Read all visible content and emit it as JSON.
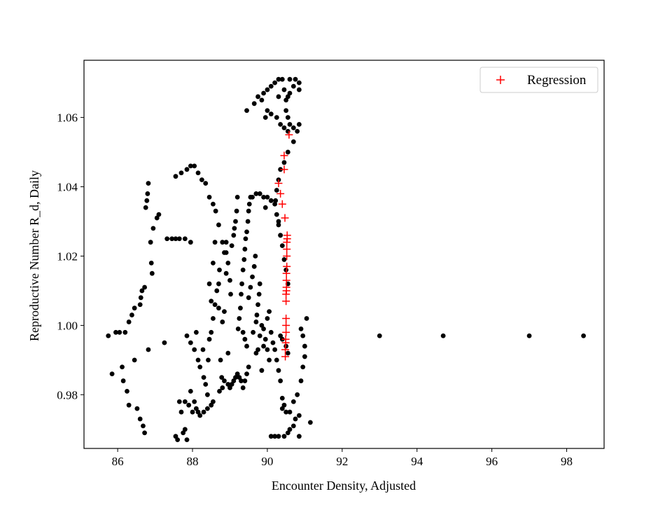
{
  "chart_data": {
    "type": "scatter",
    "title": "",
    "xlabel": "Encounter Density, Adjusted",
    "ylabel": "Reproductive Number R_d, Daily",
    "xlim": [
      85.1,
      99.0
    ],
    "ylim": [
      0.9645,
      1.0765
    ],
    "xticks": [
      86,
      88,
      90,
      92,
      94,
      96,
      98
    ],
    "yticks": [
      0.98,
      1.0,
      1.02,
      1.04,
      1.06
    ],
    "xtick_labels": [
      "86",
      "88",
      "90",
      "92",
      "94",
      "96",
      "98"
    ],
    "ytick_labels": [
      "0.98",
      "1.00",
      "1.02",
      "1.04",
      "1.06"
    ],
    "grid": false,
    "legend": {
      "position": "top-right",
      "entries": [
        {
          "label": "Regression",
          "marker": "+",
          "color": "#ff0000"
        }
      ]
    },
    "series": [
      {
        "marker": "dot",
        "color": "#000000",
        "points": [
          [
            85.75,
            0.997
          ],
          [
            85.85,
            0.986
          ],
          [
            85.95,
            0.998
          ],
          [
            86.05,
            0.998
          ],
          [
            86.12,
            0.988
          ],
          [
            86.15,
            0.984
          ],
          [
            86.2,
            0.998
          ],
          [
            86.25,
            0.981
          ],
          [
            86.3,
            1.001
          ],
          [
            86.3,
            0.977
          ],
          [
            86.38,
            1.003
          ],
          [
            86.45,
            1.005
          ],
          [
            86.45,
            0.99
          ],
          [
            86.52,
            0.976
          ],
          [
            86.6,
            1.006
          ],
          [
            86.6,
            0.973
          ],
          [
            86.62,
            1.008
          ],
          [
            86.65,
            1.01
          ],
          [
            86.68,
            0.971
          ],
          [
            86.72,
            1.011
          ],
          [
            86.72,
            0.969
          ],
          [
            86.75,
            1.034
          ],
          [
            86.78,
            1.036
          ],
          [
            86.8,
            1.038
          ],
          [
            86.82,
            1.041
          ],
          [
            86.82,
            0.993
          ],
          [
            86.88,
            1.024
          ],
          [
            86.9,
            1.018
          ],
          [
            86.92,
            1.015
          ],
          [
            86.95,
            1.028
          ],
          [
            87.05,
            1.031
          ],
          [
            87.1,
            1.032
          ],
          [
            87.25,
            0.995
          ],
          [
            87.32,
            1.025
          ],
          [
            87.45,
            1.025
          ],
          [
            87.55,
            1.025
          ],
          [
            87.65,
            1.025
          ],
          [
            87.8,
            1.025
          ],
          [
            87.95,
            1.024
          ],
          [
            87.55,
            0.968
          ],
          [
            87.6,
            0.967
          ],
          [
            87.65,
            0.978
          ],
          [
            87.7,
            0.975
          ],
          [
            87.75,
            0.969
          ],
          [
            87.8,
            0.97
          ],
          [
            87.8,
            0.978
          ],
          [
            87.85,
            0.967
          ],
          [
            87.9,
            0.977
          ],
          [
            87.95,
            0.981
          ],
          [
            88.0,
            0.975
          ],
          [
            88.05,
            0.978
          ],
          [
            88.1,
            0.976
          ],
          [
            88.15,
            0.975
          ],
          [
            88.2,
            0.974
          ],
          [
            88.3,
            0.975
          ],
          [
            88.4,
            0.976
          ],
          [
            88.5,
            0.977
          ],
          [
            88.55,
            0.978
          ],
          [
            87.55,
            1.043
          ],
          [
            87.7,
            1.044
          ],
          [
            87.85,
            1.045
          ],
          [
            87.95,
            1.046
          ],
          [
            88.05,
            1.046
          ],
          [
            88.15,
            1.044
          ],
          [
            88.25,
            1.042
          ],
          [
            88.35,
            1.041
          ],
          [
            88.45,
            1.037
          ],
          [
            88.55,
            1.035
          ],
          [
            88.62,
            1.033
          ],
          [
            88.7,
            1.029
          ],
          [
            88.8,
            1.024
          ],
          [
            88.9,
            1.021
          ],
          [
            87.85,
            0.997
          ],
          [
            87.95,
            0.995
          ],
          [
            88.05,
            0.993
          ],
          [
            88.1,
            0.998
          ],
          [
            88.15,
            0.99
          ],
          [
            88.2,
            0.988
          ],
          [
            88.28,
            0.993
          ],
          [
            88.3,
            0.985
          ],
          [
            88.35,
            0.983
          ],
          [
            88.4,
            0.98
          ],
          [
            88.42,
            0.99
          ],
          [
            88.45,
            0.996
          ],
          [
            88.5,
            0.998
          ],
          [
            88.55,
            1.002
          ],
          [
            88.6,
            1.006
          ],
          [
            88.65,
            1.01
          ],
          [
            88.7,
            1.012
          ],
          [
            88.72,
            1.016
          ],
          [
            88.72,
            0.981
          ],
          [
            88.75,
            0.99
          ],
          [
            88.78,
            0.985
          ],
          [
            88.8,
            0.982
          ],
          [
            88.85,
            1.021
          ],
          [
            88.85,
            0.984
          ],
          [
            88.9,
            1.024
          ],
          [
            88.95,
            0.983
          ],
          [
            88.95,
            0.992
          ],
          [
            89.0,
            0.982
          ],
          [
            89.05,
            0.983
          ],
          [
            89.1,
            0.984
          ],
          [
            89.15,
            0.985
          ],
          [
            89.2,
            0.986
          ],
          [
            89.25,
            0.985
          ],
          [
            89.3,
            0.984
          ],
          [
            89.35,
            0.982
          ],
          [
            89.4,
            0.984
          ],
          [
            89.45,
            0.986
          ],
          [
            89.5,
            0.988
          ],
          [
            88.45,
            1.012
          ],
          [
            88.5,
            1.007
          ],
          [
            88.55,
            1.018
          ],
          [
            88.6,
            1.024
          ],
          [
            88.7,
            1.005
          ],
          [
            88.8,
            1.001
          ],
          [
            88.85,
            1.004
          ],
          [
            88.9,
            1.015
          ],
          [
            88.95,
            1.018
          ],
          [
            89.0,
            1.013
          ],
          [
            89.02,
            1.009
          ],
          [
            89.05,
            1.023
          ],
          [
            89.1,
            1.026
          ],
          [
            89.12,
            1.028
          ],
          [
            89.15,
            1.03
          ],
          [
            89.18,
            1.033
          ],
          [
            89.2,
            1.037
          ],
          [
            89.22,
            0.999
          ],
          [
            89.25,
            1.002
          ],
          [
            89.28,
            1.005
          ],
          [
            89.3,
            1.009
          ],
          [
            89.32,
            1.012
          ],
          [
            89.35,
            1.016
          ],
          [
            89.38,
            1.019
          ],
          [
            89.4,
            1.022
          ],
          [
            89.42,
            1.025
          ],
          [
            89.45,
            1.027
          ],
          [
            89.48,
            1.03
          ],
          [
            89.5,
            1.033
          ],
          [
            89.52,
            1.035
          ],
          [
            89.55,
            1.037
          ],
          [
            89.35,
            0.998
          ],
          [
            89.4,
            0.996
          ],
          [
            89.45,
            0.994
          ],
          [
            89.5,
            1.008
          ],
          [
            89.55,
            1.011
          ],
          [
            89.6,
            1.014
          ],
          [
            89.62,
            0.998
          ],
          [
            89.65,
            1.017
          ],
          [
            89.68,
            1.02
          ],
          [
            89.7,
            1.001
          ],
          [
            89.72,
            1.003
          ],
          [
            89.75,
            1.006
          ],
          [
            89.78,
            1.009
          ],
          [
            89.8,
            1.012
          ],
          [
            89.8,
            0.997
          ],
          [
            89.85,
            1.0
          ],
          [
            89.85,
            0.987
          ],
          [
            89.9,
            0.999
          ],
          [
            89.9,
            0.994
          ],
          [
            89.95,
            0.996
          ],
          [
            90.0,
            1.002
          ],
          [
            90.0,
            0.993
          ],
          [
            90.05,
            1.004
          ],
          [
            90.05,
            0.99
          ],
          [
            90.1,
            0.998
          ],
          [
            90.15,
            0.995
          ],
          [
            90.2,
            0.993
          ],
          [
            90.25,
            0.99
          ],
          [
            89.7,
            0.992
          ],
          [
            89.75,
            0.993
          ],
          [
            89.6,
            1.037
          ],
          [
            89.7,
            1.038
          ],
          [
            89.8,
            1.038
          ],
          [
            89.9,
            1.037
          ],
          [
            90.0,
            1.037
          ],
          [
            90.1,
            1.036
          ],
          [
            90.2,
            1.035
          ],
          [
            90.25,
            1.032
          ],
          [
            90.3,
            1.029
          ],
          [
            90.35,
            1.026
          ],
          [
            90.4,
            1.023
          ],
          [
            90.45,
            1.019
          ],
          [
            90.5,
            1.016
          ],
          [
            90.55,
            1.012
          ],
          [
            89.95,
            1.034
          ],
          [
            89.45,
            1.062
          ],
          [
            89.65,
            1.064
          ],
          [
            89.75,
            1.066
          ],
          [
            89.85,
            1.065
          ],
          [
            89.9,
            1.067
          ],
          [
            90.0,
            1.068
          ],
          [
            90.1,
            1.069
          ],
          [
            90.2,
            1.07
          ],
          [
            90.3,
            1.071
          ],
          [
            90.4,
            1.071
          ],
          [
            90.6,
            1.071
          ],
          [
            90.75,
            1.071
          ],
          [
            90.85,
            1.07
          ],
          [
            90.85,
            1.068
          ],
          [
            90.7,
            1.069
          ],
          [
            90.6,
            1.067
          ],
          [
            90.55,
            1.066
          ],
          [
            90.5,
            1.065
          ],
          [
            90.5,
            1.062
          ],
          [
            90.55,
            1.06
          ],
          [
            90.6,
            1.058
          ],
          [
            90.7,
            1.057
          ],
          [
            90.8,
            1.056
          ],
          [
            90.85,
            1.058
          ],
          [
            90.7,
            1.053
          ],
          [
            90.55,
            1.056
          ],
          [
            90.45,
            1.057
          ],
          [
            90.35,
            1.058
          ],
          [
            90.25,
            1.06
          ],
          [
            90.1,
            1.061
          ],
          [
            90.0,
            1.062
          ],
          [
            89.95,
            1.06
          ],
          [
            90.3,
            1.066
          ],
          [
            90.45,
            1.068
          ],
          [
            90.55,
            1.05
          ],
          [
            90.45,
            1.047
          ],
          [
            90.35,
            1.045
          ],
          [
            90.3,
            1.042
          ],
          [
            90.25,
            1.039
          ],
          [
            90.22,
            1.036
          ],
          [
            90.3,
            1.03
          ],
          [
            90.35,
            1.026
          ],
          [
            90.4,
            0.976
          ],
          [
            90.5,
            0.975
          ],
          [
            90.6,
            0.975
          ],
          [
            90.7,
            0.978
          ],
          [
            90.8,
            0.98
          ],
          [
            90.9,
            0.984
          ],
          [
            90.95,
            0.988
          ],
          [
            91.0,
            0.991
          ],
          [
            91.0,
            0.994
          ],
          [
            90.95,
            0.997
          ],
          [
            90.9,
            0.999
          ],
          [
            91.05,
            1.002
          ],
          [
            90.3,
            0.987
          ],
          [
            90.35,
            0.984
          ],
          [
            90.4,
            0.979
          ],
          [
            90.45,
            0.977
          ],
          [
            90.35,
            0.997
          ],
          [
            90.4,
            0.996
          ],
          [
            90.5,
            0.994
          ],
          [
            90.55,
            0.992
          ],
          [
            90.1,
            0.968
          ],
          [
            90.2,
            0.968
          ],
          [
            90.3,
            0.968
          ],
          [
            90.45,
            0.968
          ],
          [
            90.55,
            0.969
          ],
          [
            90.6,
            0.97
          ],
          [
            90.7,
            0.971
          ],
          [
            90.75,
            0.973
          ],
          [
            90.85,
            0.968
          ],
          [
            90.85,
            0.974
          ],
          [
            91.15,
            0.972
          ],
          [
            93.0,
            0.997
          ],
          [
            94.7,
            0.997
          ],
          [
            97.0,
            0.997
          ],
          [
            98.45,
            0.997
          ]
        ]
      },
      {
        "name": "Regression",
        "marker": "+",
        "color": "#ff0000",
        "points": [
          [
            90.48,
            0.991
          ],
          [
            90.48,
            0.993
          ],
          [
            90.49,
            0.995
          ],
          [
            90.49,
            0.996
          ],
          [
            90.5,
            0.998
          ],
          [
            90.5,
            1.0
          ],
          [
            90.5,
            1.002
          ],
          [
            90.5,
            1.007
          ],
          [
            90.5,
            1.009
          ],
          [
            90.51,
            1.01
          ],
          [
            90.51,
            1.011
          ],
          [
            90.51,
            1.013
          ],
          [
            90.51,
            1.015
          ],
          [
            90.52,
            1.017
          ],
          [
            90.52,
            1.02
          ],
          [
            90.52,
            1.022
          ],
          [
            90.52,
            1.024
          ],
          [
            90.53,
            1.025
          ],
          [
            90.53,
            1.026
          ],
          [
            90.47,
            1.031
          ],
          [
            90.4,
            1.035
          ],
          [
            90.35,
            1.038
          ],
          [
            90.3,
            1.041
          ],
          [
            90.45,
            1.045
          ],
          [
            90.45,
            1.049
          ],
          [
            90.58,
            1.055
          ]
        ]
      }
    ]
  }
}
